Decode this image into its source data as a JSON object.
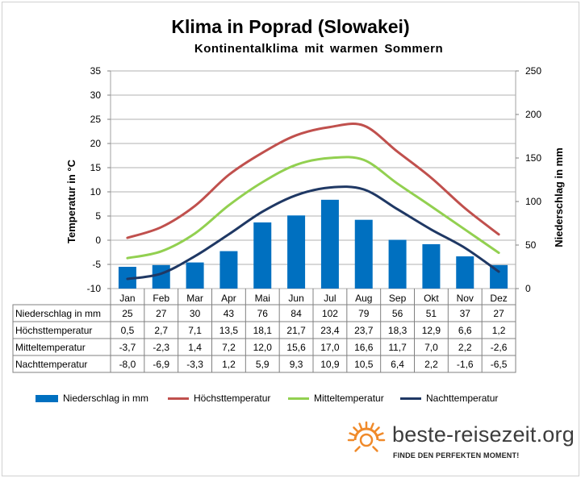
{
  "title": "Klima in Poprad (Slowakei)",
  "subtitle": "Kontinentalklima  mit warmen Sommern",
  "chart_data": {
    "type": "bar+line",
    "categories": [
      "Jan",
      "Feb",
      "Mar",
      "Apr",
      "Mai",
      "Jun",
      "Jul",
      "Aug",
      "Sep",
      "Okt",
      "Nov",
      "Dez"
    ],
    "y_left": {
      "label": "Temperatur in °C",
      "min": -10,
      "max": 35,
      "step": 5,
      "ticks": [
        "35",
        "30",
        "25",
        "20",
        "15",
        "10",
        "5",
        "0",
        "-5",
        "-10"
      ]
    },
    "y_right": {
      "label": "Niederschlag in mm",
      "min": 0,
      "max": 250,
      "step": 50,
      "ticks": [
        "250",
        "200",
        "150",
        "100",
        "50",
        "0"
      ]
    },
    "grid": true,
    "legend_position": "bottom",
    "series": [
      {
        "name": "Niederschlag in mm",
        "type": "bar",
        "axis": "right",
        "color": "#0070c0",
        "values": [
          25,
          27,
          30,
          43,
          76,
          84,
          102,
          79,
          56,
          51,
          37,
          27
        ],
        "display": [
          "25",
          "27",
          "30",
          "43",
          "76",
          "84",
          "102",
          "79",
          "56",
          "51",
          "37",
          "27"
        ]
      },
      {
        "name": "Höchsttemperatur",
        "type": "line",
        "axis": "left",
        "color": "#c0504d",
        "values": [
          0.5,
          2.7,
          7.1,
          13.5,
          18.1,
          21.7,
          23.4,
          23.7,
          18.3,
          12.9,
          6.6,
          1.2
        ],
        "display": [
          "0,5",
          "2,7",
          "7,1",
          "13,5",
          "18,1",
          "21,7",
          "23,4",
          "23,7",
          "18,3",
          "12,9",
          "6,6",
          "1,2"
        ]
      },
      {
        "name": "Mitteltemperatur",
        "type": "line",
        "axis": "left",
        "color": "#92d050",
        "values": [
          -3.7,
          -2.3,
          1.4,
          7.2,
          12.0,
          15.6,
          17.0,
          16.6,
          11.7,
          7.0,
          2.2,
          -2.6
        ],
        "display": [
          "-3,7",
          "-2,3",
          "1,4",
          "7,2",
          "12,0",
          "15,6",
          "17,0",
          "16,6",
          "11,7",
          "7,0",
          "2,2",
          "-2,6"
        ]
      },
      {
        "name": "Nachttemperatur",
        "type": "line",
        "axis": "left",
        "color": "#1f3864",
        "values": [
          -8.0,
          -6.9,
          -3.3,
          1.2,
          5.9,
          9.3,
          10.9,
          10.5,
          6.4,
          2.2,
          -1.6,
          -6.5
        ],
        "display": [
          "-8,0",
          "-6,9",
          "-3,3",
          "1,2",
          "5,9",
          "9,3",
          "10,9",
          "10,5",
          "6,4",
          "2,2",
          "-1,6",
          "-6,5"
        ]
      }
    ]
  },
  "brand": {
    "name": "beste-reisezeit.org",
    "slogan": "FINDE DEN PERFEKTEN MOMENT!",
    "sun_color": "#f08a2a",
    "icon": "sun-logo-icon"
  }
}
